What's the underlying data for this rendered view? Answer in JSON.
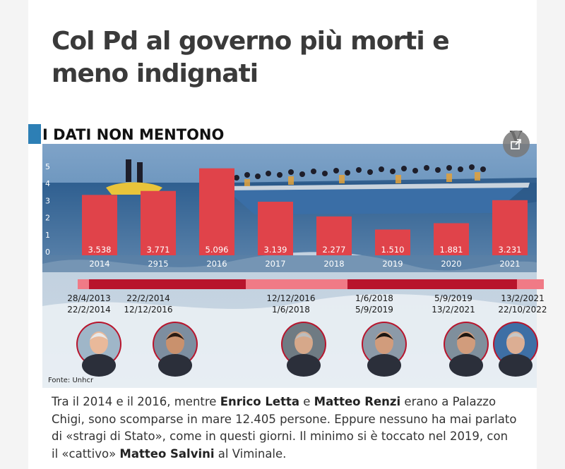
{
  "article": {
    "headline": "Col Pd al governo più morti e meno indignati",
    "section_title": "I DATI NON MENTONO",
    "badge": "V",
    "share_icon": "share-icon"
  },
  "chart_data": {
    "type": "bar",
    "title": "I DATI NON MENTONO",
    "categories": [
      "2014",
      "2915",
      "2016",
      "2017",
      "2018",
      "2019",
      "2020",
      "2021"
    ],
    "values": [
      3.538,
      3.771,
      5.096,
      3.139,
      2.277,
      1.51,
      1.881,
      3.231
    ],
    "value_labels": [
      "3.538",
      "3.771",
      "5.096",
      "3.139",
      "2.277",
      "1.510",
      "1.881",
      "3.231"
    ],
    "y_ticks": [
      "0",
      "1",
      "2",
      "3",
      "4",
      "5"
    ],
    "ylim": [
      0,
      5.5
    ],
    "grid": false,
    "bar_color": "#e0434a",
    "source": "Fonte: Unhcr",
    "governments": [
      {
        "start": "28/4/2013",
        "end": "22/2/2014",
        "color": "#f07a86"
      },
      {
        "start": "22/2/2014",
        "end": "12/12/2016",
        "color": "#b8142c"
      },
      {
        "start": "12/12/2016",
        "end": "1/6/2018",
        "color": "#f07a86"
      },
      {
        "start": "1/6/2018",
        "end": "5/9/2019",
        "color": "#b8142c"
      },
      {
        "start": "5/9/2019",
        "end": "13/2/2021",
        "color": "#b8142c"
      },
      {
        "start": "13/2/2021",
        "end": "22/10/2022",
        "color": "#f07a86"
      }
    ],
    "portraits": [
      {
        "name": "enrico-letta-portrait",
        "skin": "#e9b99a",
        "hair": "#e8e8e8",
        "bg": "#9fb6c8"
      },
      {
        "name": "matteo-renzi-portrait",
        "skin": "#c9916d",
        "hair": "#2a1c14",
        "bg": "#7d8ea0"
      },
      {
        "name": "paolo-gentiloni-portrait",
        "skin": "#d6a88a",
        "hair": "#bdbdbd",
        "bg": "#6f7b83"
      },
      {
        "name": "giuseppe-conte-portrait-1",
        "skin": "#d19c7c",
        "hair": "#1d1712",
        "bg": "#8c9aa8"
      },
      {
        "name": "giuseppe-conte-portrait-2",
        "skin": "#d19c7c",
        "hair": "#1d1712",
        "bg": "#7f8f9c"
      },
      {
        "name": "mario-draghi-portrait",
        "skin": "#dcae93",
        "hair": "#c7c7c7",
        "bg": "#3e6fa5"
      }
    ]
  },
  "body": {
    "p1": "Tra il 2014 e il 2016, mentre ",
    "name1": "Enrico Letta",
    "p2": " e ",
    "name2": "Matteo Renzi",
    "p3": " erano a Palazzo Chigi, sono scomparse in mare 12.405 persone. Eppure nessuno ha mai parlato di «stragi di Stato», come in questi giorni. Il minimo si è toccato nel 2019, con il «cattivo» ",
    "name3": "Matteo Salvini",
    "p4": " al Viminale."
  }
}
